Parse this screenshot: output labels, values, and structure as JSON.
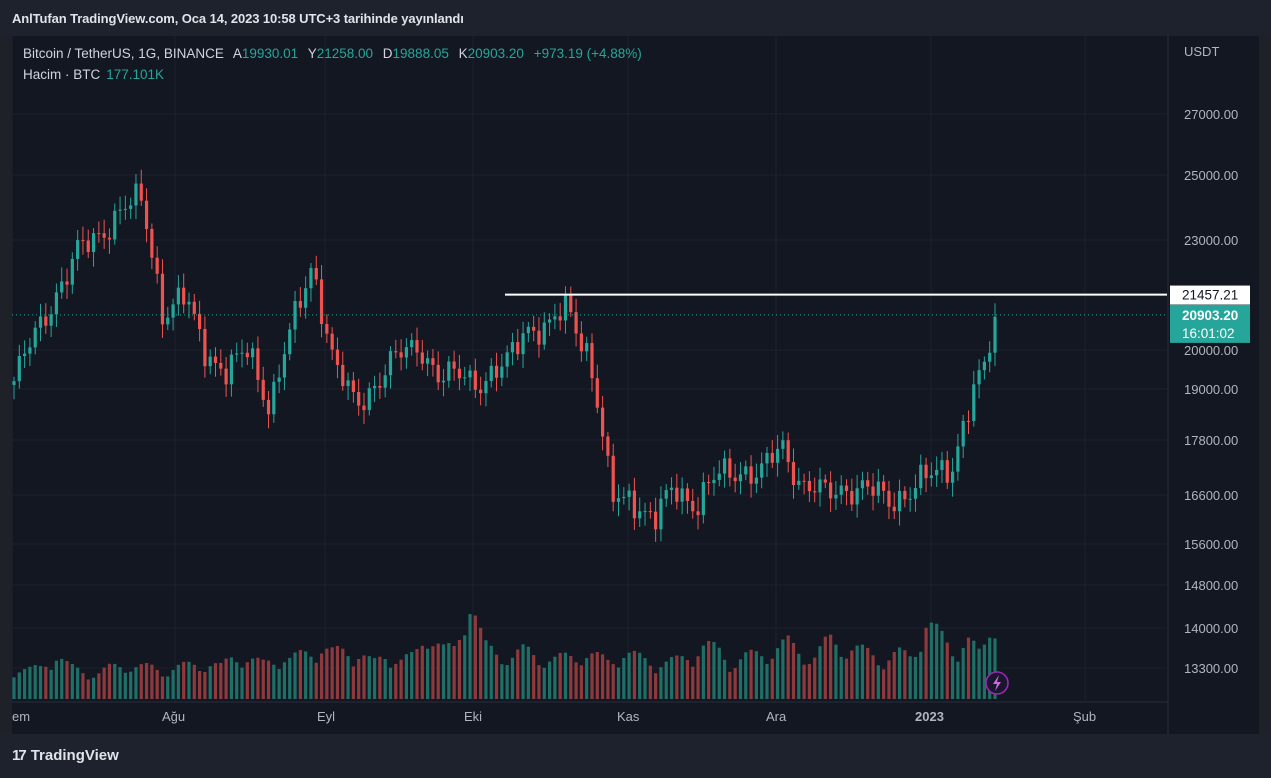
{
  "header": {
    "published": "AnlTufan TradingView.com, Oca 14, 2023 10:58 UTC+3 tarihinde yayınlandı"
  },
  "legend": {
    "symbol": "Bitcoin / TetherUS, 1G, BINANCE",
    "open_label": "A",
    "open": "19930.01",
    "high_label": "Y",
    "high": "21258.00",
    "low_label": "D",
    "low": "19888.05",
    "close_label": "K",
    "close": "20903.20",
    "change": "+973.19 (+4.88%)",
    "volume_label": "Hacim · BTC",
    "volume": "177.101K"
  },
  "price_axis": {
    "currency": "USDT",
    "labels": [
      "27000.00",
      "25000.00",
      "23000.00",
      "20000.00",
      "19000.00",
      "17800.00",
      "16600.00",
      "15600.00",
      "14800.00",
      "14000.00",
      "13300.00"
    ]
  },
  "time_axis": {
    "labels": [
      "em",
      "Ağu",
      "Eyl",
      "Eki",
      "Kas",
      "Ara",
      "2023",
      "Şub"
    ]
  },
  "tags": {
    "hline_price": "21457.21",
    "last_price": "20903.20",
    "countdown": "16:01:02"
  },
  "colors": {
    "up": "#26a69a",
    "down": "#ef5350",
    "background": "#131722",
    "line": "#ffffff"
  },
  "footer": {
    "brand": "TradingView"
  },
  "chart_data": {
    "type": "candlestick",
    "symbol": "BTC/USDT",
    "interval": "1D",
    "x_start": "2022-07-02",
    "x_end": "2023-01-14",
    "ylim": [
      13000,
      27800
    ],
    "price_scale": "log",
    "horizontal_line": 21457.21,
    "grid": true,
    "series": [
      {
        "name": "price",
        "waypoints": [
          [
            19200,
            19600
          ],
          [
            20400,
            21600
          ],
          [
            21600,
            23800
          ],
          [
            22600,
            24000
          ],
          [
            23200,
            23400
          ],
          [
            23900,
            25000
          ],
          [
            24200,
            24400
          ],
          [
            21000,
            21000
          ],
          [
            21400,
            21500
          ],
          [
            20000,
            19700
          ],
          [
            19400,
            19500
          ],
          [
            20000,
            19800
          ],
          [
            18600,
            18600
          ],
          [
            20500,
            22000
          ],
          [
            22400,
            22400
          ],
          [
            19600,
            19800
          ],
          [
            18600,
            18400
          ],
          [
            19200,
            19400
          ],
          [
            19800,
            19500
          ],
          [
            20200,
            20300
          ],
          [
            19200,
            19400
          ],
          [
            19400,
            19500
          ],
          [
            19200,
            19300
          ],
          [
            19500,
            19500
          ],
          [
            20700,
            20800
          ],
          [
            20500,
            20500
          ],
          [
            21200,
            21200
          ],
          [
            19800,
            18600
          ],
          [
            16500,
            17200
          ],
          [
            16600,
            16600
          ],
          [
            16000,
            16400
          ],
          [
            16800,
            16800
          ],
          [
            16400,
            16400
          ],
          [
            17000,
            17000
          ],
          [
            17200,
            17100
          ],
          [
            17000,
            16900
          ],
          [
            17700,
            17800
          ],
          [
            16800,
            16800
          ],
          [
            16600,
            16700
          ],
          [
            16800,
            16800
          ],
          [
            16700,
            16700
          ],
          [
            16500,
            16600
          ],
          [
            16700,
            16800
          ],
          [
            17000,
            17100
          ],
          [
            17300,
            17400
          ],
          [
            18900,
            20000
          ],
          [
            20000,
            20900
          ]
        ]
      },
      {
        "name": "volume",
        "values_btc": [
          9,
          8,
          9,
          13,
          9,
          8,
          7,
          9,
          10,
          9,
          9,
          8,
          9,
          10,
          10,
          9,
          13,
          11,
          10,
          12,
          11,
          13,
          15,
          13,
          14,
          13,
          10,
          13,
          11,
          12,
          20,
          14,
          14,
          30,
          15,
          13,
          12,
          14,
          12,
          11,
          12,
          13,
          12,
          11,
          13,
          12,
          11,
          10,
          11,
          13,
          15,
          14,
          10,
          12,
          13,
          14,
          16,
          13,
          12,
          17,
          15,
          14,
          13,
          11,
          13,
          12,
          22,
          18,
          14,
          17,
          12,
          25
        ]
      }
    ]
  }
}
